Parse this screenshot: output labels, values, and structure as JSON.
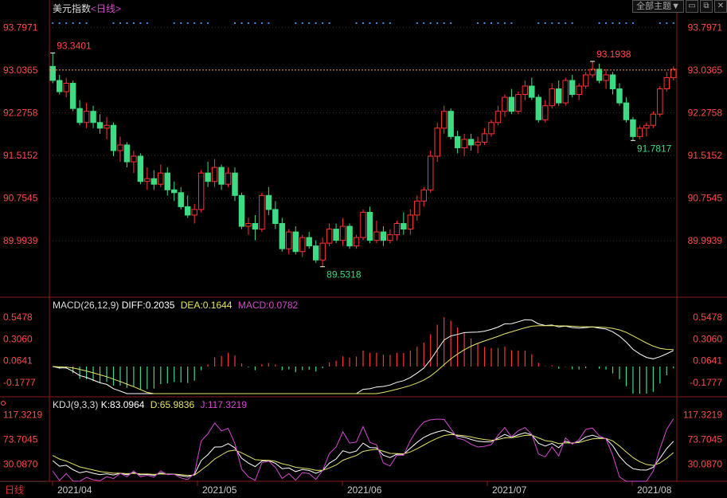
{
  "header": {
    "title": "美元指数",
    "period": "<日线>",
    "theme_label": "全部主题▼",
    "win_buttons": [
      "▭",
      "⧉",
      "✕"
    ]
  },
  "colors": {
    "up": "#ff3333",
    "down": "#3ddc84",
    "diff": "#ffffff",
    "dea": "#e5e56a",
    "macd": "#d24bd2",
    "price_line": "#ff9933",
    "marker": "#3a8ee6",
    "axis_text": "#ff4a4a"
  },
  "macd_header": {
    "name": "MACD(26,12,9)",
    "diff": "DIFF:0.2035",
    "dea": "DEA:0.1644",
    "macd": "MACD:0.0782"
  },
  "kdj_header": {
    "name": "KDJ(9,3,3)",
    "k": "K:83.0964",
    "d": "D:65.9836",
    "j": "J:117.3219"
  },
  "bottom_tab": "日线",
  "chart_data": [
    {
      "type": "candlestick",
      "title": "美元指数",
      "y_ticks": [
        93.7971,
        93.0365,
        92.2758,
        91.5152,
        90.7545,
        89.9939
      ],
      "ylim": [
        89.1,
        94.0
      ],
      "x_labels": [
        "2021/04",
        "2021/05",
        "2021/06",
        "2021/07",
        "2021/08"
      ],
      "annotations": [
        {
          "text": "93.3401",
          "kind": "high"
        },
        {
          "text": "93.1938",
          "kind": "high"
        },
        {
          "text": "89.5318",
          "kind": "low"
        },
        {
          "text": "91.7817",
          "kind": "low"
        }
      ],
      "current_price": 93.0365,
      "ohlc": [
        [
          93.1,
          93.34,
          92.8,
          92.85
        ],
        [
          92.85,
          92.95,
          92.6,
          92.65
        ],
        [
          92.65,
          92.9,
          92.55,
          92.8
        ],
        [
          92.8,
          92.85,
          92.3,
          92.35
        ],
        [
          92.35,
          92.5,
          92.05,
          92.1
        ],
        [
          92.1,
          92.45,
          92.0,
          92.3
        ],
        [
          92.3,
          92.4,
          92.0,
          92.1
        ],
        [
          92.1,
          92.25,
          91.9,
          92.0
        ],
        [
          92.0,
          92.2,
          91.8,
          92.05
        ],
        [
          92.05,
          92.1,
          91.5,
          91.6
        ],
        [
          91.6,
          91.85,
          91.4,
          91.7
        ],
        [
          91.7,
          91.75,
          91.3,
          91.4
        ],
        [
          91.4,
          91.6,
          91.2,
          91.5
        ],
        [
          91.5,
          91.55,
          91.0,
          91.05
        ],
        [
          91.05,
          91.3,
          90.9,
          91.1
        ],
        [
          91.1,
          91.25,
          90.9,
          91.0
        ],
        [
          91.0,
          91.35,
          90.95,
          91.2
        ],
        [
          91.2,
          91.3,
          90.8,
          90.9
        ],
        [
          90.9,
          91.05,
          90.7,
          90.85
        ],
        [
          90.85,
          90.95,
          90.55,
          90.6
        ],
        [
          90.6,
          90.8,
          90.4,
          90.45
        ],
        [
          90.45,
          90.65,
          90.3,
          90.55
        ],
        [
          90.55,
          91.25,
          90.5,
          91.2
        ],
        [
          91.2,
          91.4,
          90.95,
          91.05
        ],
        [
          91.05,
          91.45,
          90.95,
          91.3
        ],
        [
          91.3,
          91.35,
          90.9,
          91.0
        ],
        [
          91.0,
          91.3,
          90.95,
          91.2
        ],
        [
          91.2,
          91.3,
          90.7,
          90.8
        ],
        [
          90.8,
          90.85,
          90.2,
          90.25
        ],
        [
          90.25,
          90.4,
          90.1,
          90.3
        ],
        [
          90.3,
          90.45,
          90.0,
          90.2
        ],
        [
          90.2,
          90.85,
          90.15,
          90.8
        ],
        [
          90.8,
          90.95,
          90.45,
          90.55
        ],
        [
          90.55,
          90.7,
          90.2,
          90.3
        ],
        [
          90.3,
          90.4,
          89.8,
          89.85
        ],
        [
          89.85,
          90.2,
          89.75,
          90.15
        ],
        [
          90.15,
          90.25,
          89.75,
          89.8
        ],
        [
          89.8,
          90.1,
          89.7,
          90.05
        ],
        [
          90.05,
          90.15,
          89.85,
          89.9
        ],
        [
          89.9,
          90.0,
          89.6,
          89.65
        ],
        [
          89.65,
          90.05,
          89.53,
          89.95
        ],
        [
          89.95,
          90.3,
          89.9,
          90.2
        ],
        [
          90.2,
          90.3,
          89.95,
          90.0
        ],
        [
          90.0,
          90.4,
          89.9,
          90.25
        ],
        [
          90.25,
          90.3,
          89.85,
          89.9
        ],
        [
          89.9,
          90.1,
          89.85,
          90.05
        ],
        [
          90.05,
          90.55,
          90.0,
          90.5
        ],
        [
          90.5,
          90.6,
          89.95,
          90.0
        ],
        [
          90.0,
          90.35,
          89.95,
          90.15
        ],
        [
          90.15,
          90.25,
          89.9,
          90.0
        ],
        [
          90.0,
          90.2,
          89.95,
          90.1
        ],
        [
          90.1,
          90.35,
          90.0,
          90.3
        ],
        [
          90.3,
          90.5,
          90.1,
          90.2
        ],
        [
          90.2,
          90.55,
          90.1,
          90.45
        ],
        [
          90.45,
          90.8,
          90.35,
          90.7
        ],
        [
          90.7,
          90.95,
          90.6,
          90.9
        ],
        [
          90.9,
          91.6,
          90.85,
          91.5
        ],
        [
          91.5,
          92.1,
          91.4,
          92.0
        ],
        [
          92.0,
          92.4,
          91.9,
          92.3
        ],
        [
          92.3,
          92.35,
          91.8,
          91.85
        ],
        [
          91.85,
          91.95,
          91.55,
          91.65
        ],
        [
          91.65,
          91.9,
          91.5,
          91.8
        ],
        [
          91.8,
          91.9,
          91.6,
          91.7
        ],
        [
          91.7,
          91.85,
          91.55,
          91.75
        ],
        [
          91.75,
          92.0,
          91.7,
          91.9
        ],
        [
          91.9,
          92.15,
          91.85,
          92.1
        ],
        [
          92.1,
          92.4,
          92.05,
          92.3
        ],
        [
          92.3,
          92.6,
          92.2,
          92.55
        ],
        [
          92.55,
          92.7,
          92.25,
          92.3
        ],
        [
          92.3,
          92.65,
          92.25,
          92.6
        ],
        [
          92.6,
          92.85,
          92.5,
          92.75
        ],
        [
          92.75,
          92.9,
          92.5,
          92.55
        ],
        [
          92.55,
          92.6,
          92.1,
          92.15
        ],
        [
          92.15,
          92.5,
          92.1,
          92.4
        ],
        [
          92.4,
          92.8,
          92.35,
          92.7
        ],
        [
          92.7,
          92.85,
          92.4,
          92.45
        ],
        [
          92.45,
          92.9,
          92.4,
          92.85
        ],
        [
          92.85,
          92.95,
          92.55,
          92.6
        ],
        [
          92.6,
          92.8,
          92.5,
          92.75
        ],
        [
          92.75,
          93.0,
          92.7,
          92.95
        ],
        [
          92.95,
          93.19,
          92.9,
          93.05
        ],
        [
          93.05,
          93.15,
          92.8,
          92.85
        ],
        [
          92.85,
          93.05,
          92.7,
          92.95
        ],
        [
          92.95,
          93.0,
          92.6,
          92.7
        ],
        [
          92.7,
          92.8,
          92.4,
          92.45
        ],
        [
          92.45,
          92.55,
          92.1,
          92.15
        ],
        [
          92.15,
          92.2,
          91.78,
          91.85
        ],
        [
          91.85,
          92.05,
          91.8,
          92.0
        ],
        [
          92.0,
          92.1,
          91.85,
          92.05
        ],
        [
          92.05,
          92.3,
          92.0,
          92.25
        ],
        [
          92.25,
          92.75,
          92.2,
          92.7
        ],
        [
          92.7,
          93.0,
          92.65,
          92.9
        ],
        [
          92.9,
          93.1,
          92.85,
          93.05
        ]
      ]
    },
    {
      "type": "macd",
      "name": "MACD(26,12,9)",
      "y_ticks": [
        0.5478,
        0.306,
        0.0641,
        -0.1777
      ],
      "series_names": [
        "DIFF",
        "DEA",
        "MACD"
      ],
      "last_values": {
        "DIFF": 0.2035,
        "DEA": 0.1644,
        "MACD": 0.0782
      }
    },
    {
      "type": "kdj",
      "name": "KDJ(9,3,3)",
      "y_ticks": [
        117.3219,
        73.7045,
        30.087
      ],
      "series_names": [
        "K",
        "D",
        "J"
      ],
      "last_values": {
        "K": 83.0964,
        "D": 65.9836,
        "J": 117.3219
      }
    }
  ]
}
